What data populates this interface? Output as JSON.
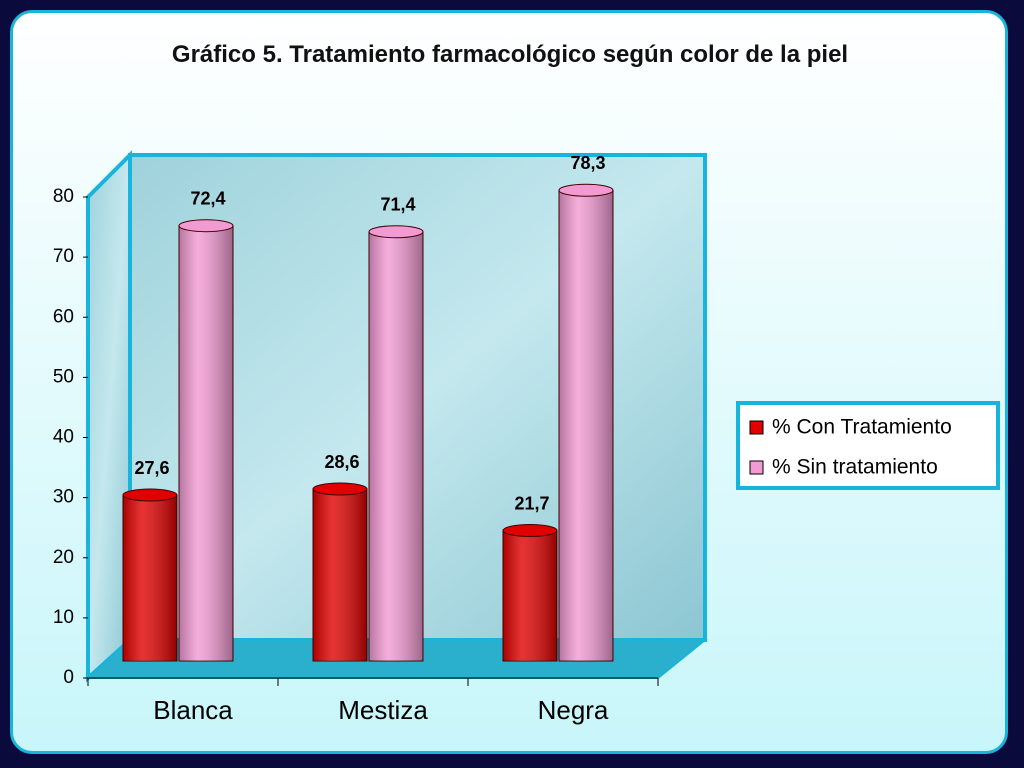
{
  "chart_data": {
    "type": "bar",
    "title": "Gráfico 5. Tratamiento farmacológico según color de la piel",
    "categories": [
      "Blanca",
      "Mestiza",
      "Negra"
    ],
    "series": [
      {
        "name": "% Con Tratamiento",
        "color": "#e00000",
        "values": [
          27.6,
          28.6,
          21.7
        ],
        "value_labels": [
          "27,6",
          "28,6",
          "21,7"
        ]
      },
      {
        "name": "% Sin tratamiento",
        "color": "#f29ad2",
        "values": [
          72.4,
          71.4,
          78.3
        ],
        "value_labels": [
          "72,4",
          "71,4",
          "78,3"
        ]
      }
    ],
    "ylim": [
      0,
      80
    ],
    "yticks": [
      0,
      10,
      20,
      30,
      40,
      50,
      60,
      70,
      80
    ],
    "grid": false,
    "legend": "right"
  }
}
